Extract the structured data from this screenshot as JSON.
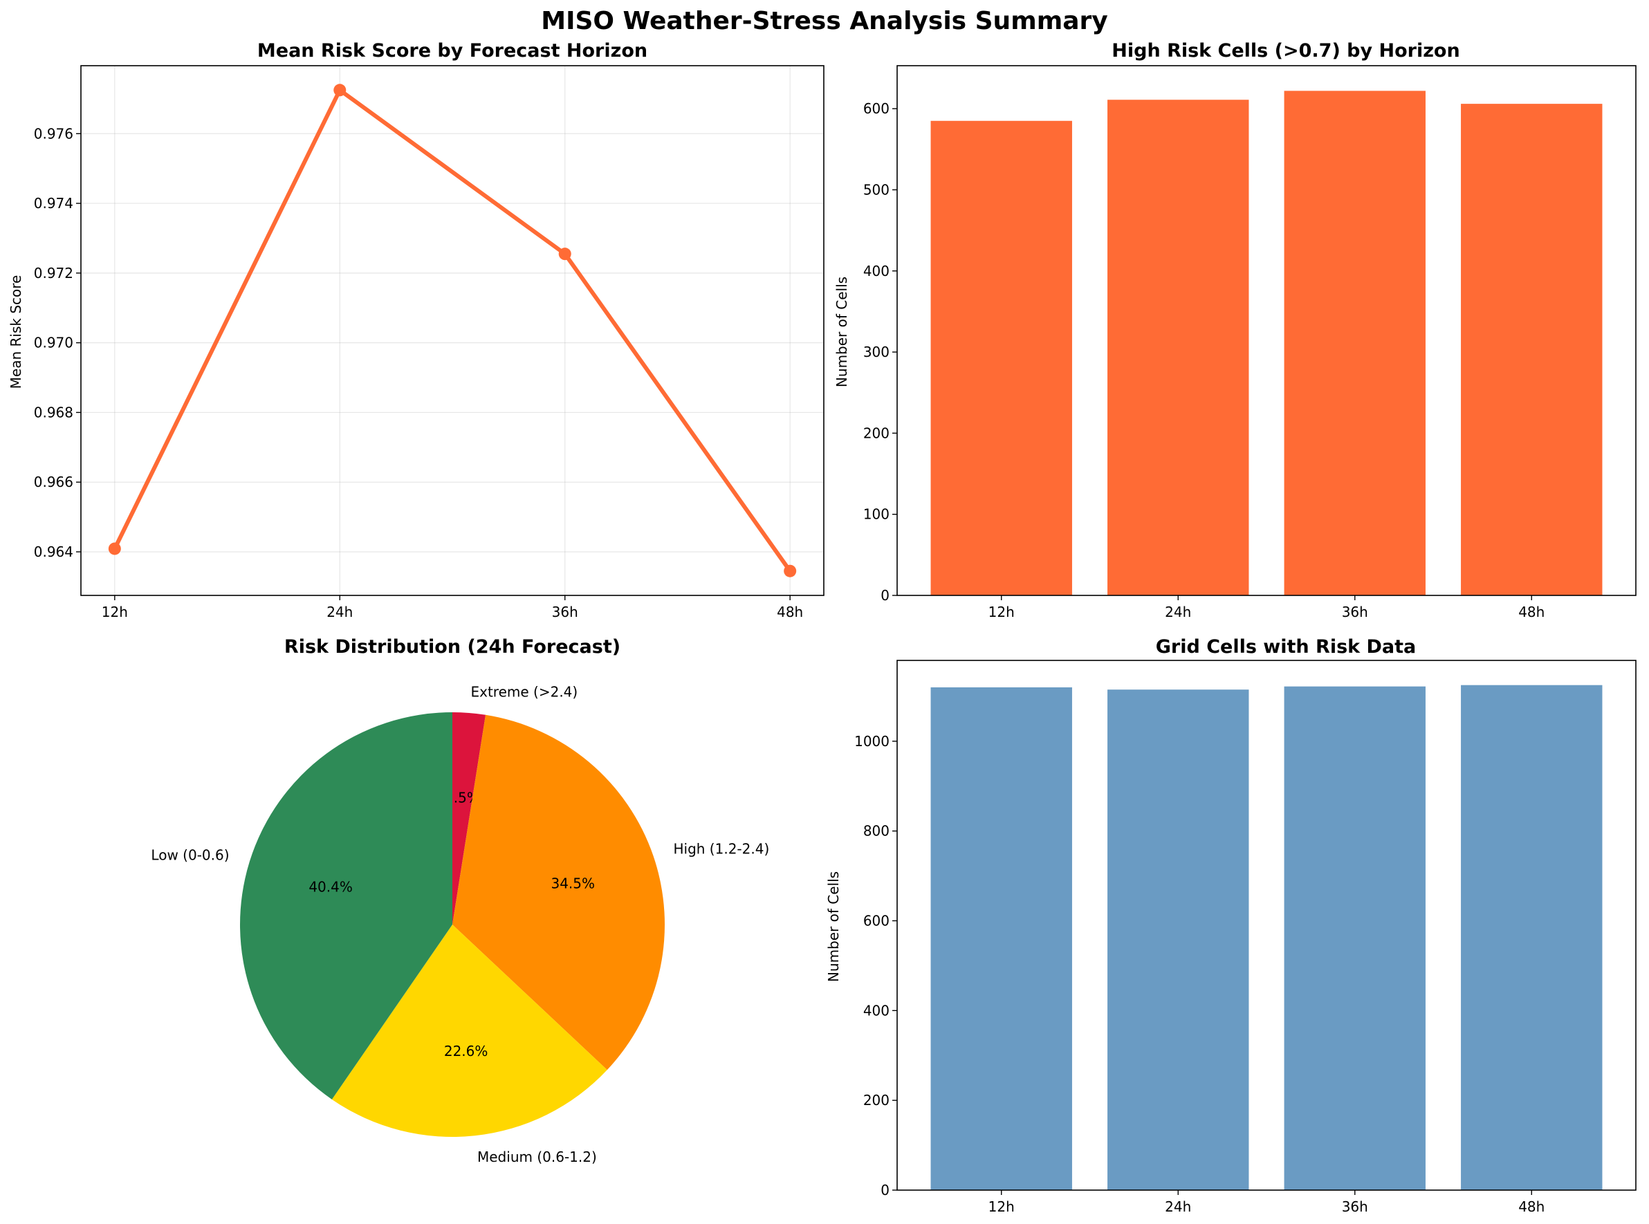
{
  "figure": {
    "title": "MISO Weather-Stress Analysis Summary"
  },
  "chart_data": [
    {
      "type": "line",
      "title": "Mean Risk Score by Forecast Horizon",
      "xlabel": "",
      "ylabel": "Mean Risk Score",
      "categories": [
        "12h",
        "24h",
        "36h",
        "48h"
      ],
      "values": [
        0.96409,
        0.97725,
        0.97255,
        0.96345
      ],
      "ylim": [
        0.96275,
        0.97795
      ],
      "yticks": [
        0.964,
        0.966,
        0.968,
        0.97,
        0.972,
        0.974,
        0.976
      ],
      "ytick_labels": [
        "0.964",
        "0.966",
        "0.968",
        "0.970",
        "0.972",
        "0.974",
        "0.976"
      ],
      "grid": true,
      "color": "#FF6B35"
    },
    {
      "type": "bar",
      "title": "High Risk Cells (>0.7) by Horizon",
      "xlabel": "",
      "ylabel": "Number of Cells",
      "categories": [
        "12h",
        "24h",
        "36h",
        "48h"
      ],
      "values": [
        585,
        611,
        622,
        606
      ],
      "ylim": [
        0,
        653
      ],
      "yticks": [
        0,
        100,
        200,
        300,
        400,
        500,
        600
      ],
      "ytick_labels": [
        "0",
        "100",
        "200",
        "300",
        "400",
        "500",
        "600"
      ],
      "grid": false,
      "color": "#FF6B35"
    },
    {
      "type": "pie",
      "title": "Risk Distribution (24h Forecast)",
      "labels": [
        "Extreme (>2.4)",
        "High (1.2-2.4)",
        "Medium (0.6-1.2)",
        "Low (0-0.6)"
      ],
      "values": [
        2.5,
        34.5,
        22.6,
        40.4
      ],
      "pct_labels": [
        "2.5%",
        "34.5%",
        "22.6%",
        "40.4%"
      ],
      "colors": [
        "#DC143C",
        "#FF8C00",
        "#FFD700",
        "#2E8B57"
      ]
    },
    {
      "type": "bar",
      "title": "Grid Cells with Risk Data",
      "xlabel": "",
      "ylabel": "Number of Cells",
      "categories": [
        "12h",
        "24h",
        "36h",
        "48h"
      ],
      "values": [
        1120,
        1115,
        1122,
        1125
      ],
      "ylim": [
        0,
        1180
      ],
      "yticks": [
        0,
        200,
        400,
        600,
        800,
        1000
      ],
      "ytick_labels": [
        "0",
        "200",
        "400",
        "600",
        "800",
        "1000"
      ],
      "grid": false,
      "color": "#6A9BC3"
    }
  ]
}
